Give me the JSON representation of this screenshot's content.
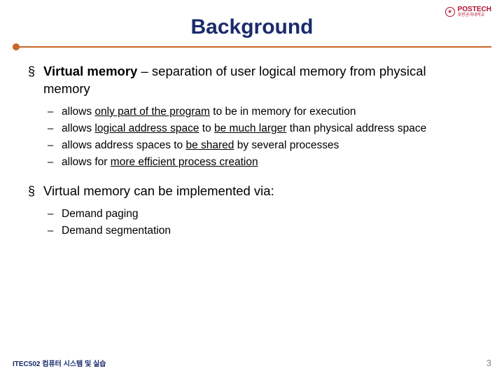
{
  "logo": {
    "text": "POSTECH",
    "subtext": "포항공과대학교"
  },
  "title": "Background",
  "colors": {
    "title": "#1a2a6c",
    "divider": "#c86428",
    "text": "#000000",
    "footer": "#1a2a6c",
    "pagenum": "#888888",
    "logo": "#b01030",
    "background": "#ffffff"
  },
  "bullets": {
    "main1": {
      "prefix_bold": "Virtual memory",
      "rest": " – separation of user logical memory from physical memory",
      "subs": [
        {
          "parts": [
            {
              "t": "allows ",
              "u": false
            },
            {
              "t": "only part of the program",
              "u": true
            },
            {
              "t": " to be in memory for execution",
              "u": false
            }
          ]
        },
        {
          "parts": [
            {
              "t": "allows ",
              "u": false
            },
            {
              "t": "logical address space",
              "u": true
            },
            {
              "t": " to ",
              "u": false
            },
            {
              "t": "be much larger",
              "u": true
            },
            {
              "t": " than physical address space",
              "u": false
            }
          ]
        },
        {
          "parts": [
            {
              "t": "allows address spaces to ",
              "u": false
            },
            {
              "t": "be shared",
              "u": true
            },
            {
              "t": " by several processes",
              "u": false
            }
          ]
        },
        {
          "parts": [
            {
              "t": "allows for ",
              "u": false
            },
            {
              "t": "more efficient process creation",
              "u": true
            }
          ]
        }
      ]
    },
    "main2": {
      "text": "Virtual memory can be implemented via:",
      "subs": [
        {
          "parts": [
            {
              "t": "Demand paging",
              "u": false
            }
          ]
        },
        {
          "parts": [
            {
              "t": "Demand segmentation",
              "u": false
            }
          ]
        }
      ]
    }
  },
  "footer": {
    "course": "ITEC502 컴퓨터 시스템 및 실습",
    "page": "3"
  }
}
